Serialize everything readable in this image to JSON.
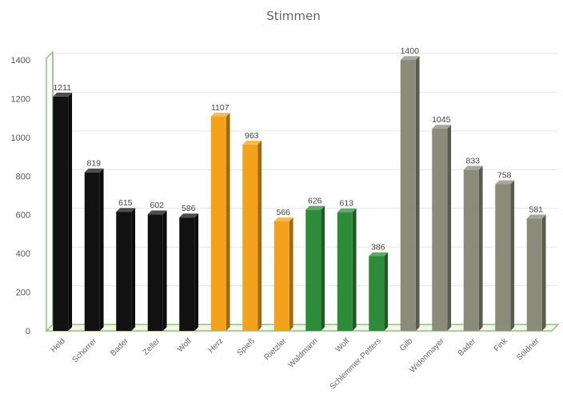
{
  "chart_data": {
    "type": "bar",
    "title": "Stimmen",
    "xlabel": "",
    "ylabel": "",
    "ylim": [
      0,
      1400
    ],
    "yticks": [
      0,
      200,
      400,
      600,
      800,
      1000,
      1200,
      1400
    ],
    "grid": true,
    "legend": "none",
    "categories": [
      "Held",
      "Schorrer",
      "Bader",
      "Zeller",
      "Wolf",
      "Herz",
      "Spieß",
      "Rietzler",
      "Waldmann",
      "Wolf",
      "Schlemmer-Petters",
      "Gilb",
      "Widenmayer",
      "Bader",
      "Fink",
      "Söldner"
    ],
    "values": [
      1211,
      819,
      615,
      602,
      586,
      1107,
      963,
      566,
      626,
      613,
      386,
      1400,
      1045,
      833,
      758,
      581
    ],
    "value_labels": [
      "1211",
      "819",
      "615",
      "602",
      "586",
      "1107",
      "963",
      "566",
      "626",
      "613",
      "386",
      "1400",
      "1045",
      "833",
      "758",
      "581"
    ],
    "bar_colors": [
      "#111111",
      "#111111",
      "#111111",
      "#111111",
      "#111111",
      "#f4a21c",
      "#f4a21c",
      "#f4a21c",
      "#2e8b3a",
      "#2e8b3a",
      "#2e8b3a",
      "#8a8b78",
      "#8a8b78",
      "#8a8b78",
      "#8a8b78",
      "#8a8b78"
    ],
    "wall_color": "#8fc07a"
  }
}
